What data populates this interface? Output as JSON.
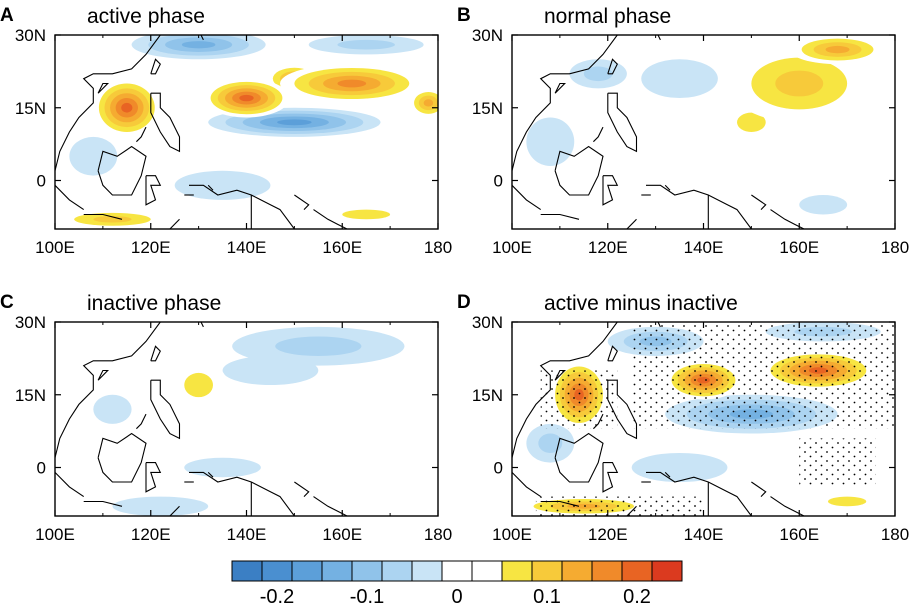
{
  "figure": {
    "colors": [
      "#3b7fc4",
      "#4a8fd0",
      "#5c9fd9",
      "#74b1e2",
      "#90c3ea",
      "#acd4f1",
      "#c9e4f6",
      "#ffffff",
      "#ffffff",
      "#f7e542",
      "#f7ca3a",
      "#f5ab31",
      "#f08a2a",
      "#e86423",
      "#db3a1f"
    ]
  },
  "chart_data": [
    {
      "type": "heatmap",
      "letter": "A",
      "title": "active phase",
      "x_ticks": [
        "100E",
        "120E",
        "140E",
        "160E",
        "180"
      ],
      "y_ticks": [
        "30N",
        "15N",
        "0"
      ],
      "xlim": [
        100,
        180
      ],
      "ylim": [
        -10,
        30
      ],
      "stippled": false,
      "blobs": [
        {
          "lon": 115,
          "lat": 15,
          "rx": 7,
          "ry": 6,
          "v": 0.21
        },
        {
          "lon": 140,
          "lat": 17,
          "rx": 9,
          "ry": 4,
          "v": 0.22
        },
        {
          "lon": 162,
          "lat": 20,
          "rx": 15,
          "ry": 4,
          "v": 0.19
        },
        {
          "lon": 150,
          "lat": 21,
          "rx": 6,
          "ry": 3,
          "v": 0.13
        },
        {
          "lon": 178,
          "lat": 16,
          "rx": 4,
          "ry": 3,
          "v": 0.16
        },
        {
          "lon": 130,
          "lat": 28,
          "rx": 14,
          "ry": 3,
          "v": -0.15
        },
        {
          "lon": 150,
          "lat": 12,
          "rx": 18,
          "ry": 3,
          "v": -0.17
        },
        {
          "lon": 165,
          "lat": 28,
          "rx": 12,
          "ry": 2,
          "v": -0.06
        },
        {
          "lon": 108,
          "lat": 5,
          "rx": 5,
          "ry": 4,
          "v": -0.05
        },
        {
          "lon": 135,
          "lat": -1,
          "rx": 10,
          "ry": 3,
          "v": -0.04
        },
        {
          "lon": 112,
          "lat": -8,
          "rx": 12,
          "ry": 2,
          "v": 0.12
        },
        {
          "lon": 165,
          "lat": -7,
          "rx": 10,
          "ry": 2,
          "v": 0.08
        }
      ]
    },
    {
      "type": "heatmap",
      "letter": "B",
      "title": "normal phase",
      "x_ticks": [
        "100E",
        "120E",
        "140E",
        "160E",
        "180"
      ],
      "y_ticks": [
        "30N",
        "15N",
        "0"
      ],
      "xlim": [
        100,
        180
      ],
      "ylim": [
        -10,
        30
      ],
      "stippled": false,
      "blobs": [
        {
          "lon": 160,
          "lat": 20,
          "rx": 15,
          "ry": 8,
          "v": 0.12
        },
        {
          "lon": 168,
          "lat": 27,
          "rx": 10,
          "ry": 3,
          "v": 0.14
        },
        {
          "lon": 150,
          "lat": 12,
          "rx": 6,
          "ry": 4,
          "v": 0.07
        },
        {
          "lon": 135,
          "lat": 21,
          "rx": 8,
          "ry": 4,
          "v": -0.05
        },
        {
          "lon": 118,
          "lat": 22,
          "rx": 6,
          "ry": 3,
          "v": -0.06
        },
        {
          "lon": 108,
          "lat": 8,
          "rx": 5,
          "ry": 5,
          "v": -0.04
        },
        {
          "lon": 165,
          "lat": -5,
          "rx": 5,
          "ry": 2,
          "v": -0.04
        }
      ]
    },
    {
      "type": "heatmap",
      "letter": "C",
      "title": "inactive phase",
      "x_ticks": [
        "100E",
        "120E",
        "140E",
        "160E",
        "180"
      ],
      "y_ticks": [
        "30N",
        "15N",
        "0"
      ],
      "xlim": [
        100,
        180
      ],
      "ylim": [
        -10,
        30
      ],
      "stippled": false,
      "blobs": [
        {
          "lon": 130,
          "lat": 17,
          "rx": 6,
          "ry": 5,
          "v": 0.07
        },
        {
          "lon": 155,
          "lat": 25,
          "rx": 18,
          "ry": 4,
          "v": -0.06
        },
        {
          "lon": 145,
          "lat": 20,
          "rx": 10,
          "ry": 3,
          "v": -0.04
        },
        {
          "lon": 162,
          "lat": 6,
          "rx": 10,
          "ry": 2,
          "v": 0.05
        },
        {
          "lon": 112,
          "lat": 12,
          "rx": 4,
          "ry": 3,
          "v": -0.05
        },
        {
          "lon": 135,
          "lat": 0,
          "rx": 8,
          "ry": 2,
          "v": -0.04
        },
        {
          "lon": 110,
          "lat": 6,
          "rx": 4,
          "ry": 2,
          "v": 0.05
        },
        {
          "lon": 122,
          "lat": -8,
          "rx": 10,
          "ry": 2,
          "v": -0.04
        }
      ]
    },
    {
      "type": "heatmap",
      "letter": "D",
      "title": "active minus inactive",
      "x_ticks": [
        "100E",
        "120E",
        "140E",
        "160E",
        "180"
      ],
      "y_ticks": [
        "30N",
        "15N",
        "0"
      ],
      "xlim": [
        100,
        180
      ],
      "ylim": [
        -10,
        30
      ],
      "stippled": true,
      "blobs": [
        {
          "lon": 114,
          "lat": 15,
          "rx": 6,
          "ry": 7,
          "v": 0.2
        },
        {
          "lon": 140,
          "lat": 18,
          "rx": 8,
          "ry": 4,
          "v": 0.2
        },
        {
          "lon": 164,
          "lat": 20,
          "rx": 12,
          "ry": 4,
          "v": 0.2
        },
        {
          "lon": 130,
          "lat": 26,
          "rx": 10,
          "ry": 3,
          "v": -0.11
        },
        {
          "lon": 150,
          "lat": 11,
          "rx": 18,
          "ry": 4,
          "v": -0.16
        },
        {
          "lon": 165,
          "lat": 28,
          "rx": 12,
          "ry": 2,
          "v": -0.08
        },
        {
          "lon": 108,
          "lat": 5,
          "rx": 5,
          "ry": 4,
          "v": -0.07
        },
        {
          "lon": 135,
          "lat": 0,
          "rx": 10,
          "ry": 3,
          "v": -0.05
        },
        {
          "lon": 115,
          "lat": -8,
          "rx": 14,
          "ry": 2,
          "v": 0.14
        },
        {
          "lon": 170,
          "lat": -7,
          "rx": 8,
          "ry": 2,
          "v": 0.08
        }
      ]
    }
  ],
  "colorbar": {
    "labels": [
      "-0.2",
      "-0.1",
      "0",
      "0.1",
      "0.2"
    ],
    "label_values": [
      -0.2,
      -0.1,
      0,
      0.1,
      0.2
    ],
    "range": [
      -0.25,
      0.25
    ]
  }
}
